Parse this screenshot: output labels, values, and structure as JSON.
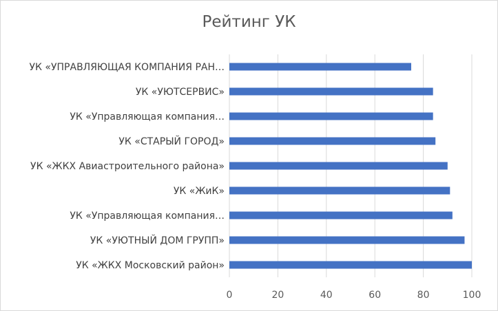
{
  "chart_data": {
    "type": "bar",
    "orientation": "horizontal",
    "title": "Рейтинг УК",
    "categories": [
      "УК «ЖКХ Московский район»",
      "УК «УЮТНЫЙ ДОМ ГРУПП»",
      "УК «Управляющая компания…",
      "УК «ЖиК»",
      "УК «ЖКХ Авиастроительного района»",
      "УК «СТАРЫЙ ГОРОД»",
      "УК «Управляющая компания…",
      "УК «УЮТСЕРВИС»",
      "УК «УПРАВЛЯЮЩАЯ КОМПАНИЯ РАН…"
    ],
    "values": [
      100,
      97,
      92,
      91,
      90,
      85,
      84,
      84,
      75
    ],
    "xlim": [
      0,
      100
    ],
    "xticks": [
      "0",
      "20",
      "40",
      "60",
      "80",
      "100"
    ],
    "grid": true,
    "legend": "none",
    "bar_color": "#4472c4",
    "grid_color": "#d9d9d9"
  }
}
